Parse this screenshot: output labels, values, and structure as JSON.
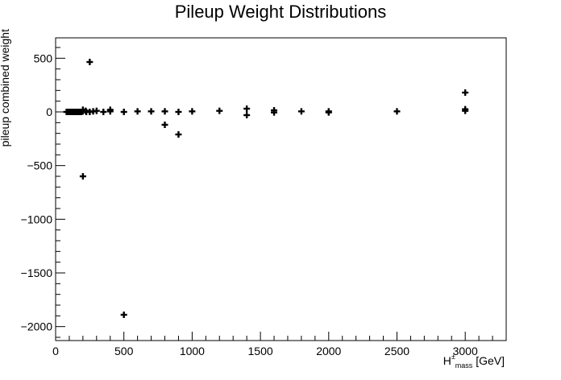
{
  "chart_data": {
    "type": "scatter",
    "title": "Pileup Weight Distributions",
    "ylabel": "pileup combined weight",
    "xlabel": {
      "main": "H",
      "sup": "±",
      "sub": "mass",
      "unit": "[GeV]"
    },
    "xlim": [
      0,
      3300
    ],
    "ylim": [
      -2130,
      690
    ],
    "xticks": [
      0,
      500,
      1000,
      1500,
      2000,
      2500,
      3000
    ],
    "yticks": [
      -2000,
      -1500,
      -1000,
      -500,
      0,
      500
    ],
    "tick_labels_x": [
      "0",
      "500",
      "1000",
      "1500",
      "2000",
      "2500",
      "3000"
    ],
    "tick_labels_y": [
      "−2000",
      "−1500",
      "−1000",
      "−500",
      "0",
      "500"
    ],
    "grid": false,
    "marker": "+",
    "points": [
      {
        "x": 80,
        "y": 0
      },
      {
        "x": 90,
        "y": 0
      },
      {
        "x": 100,
        "y": 0
      },
      {
        "x": 110,
        "y": 0
      },
      {
        "x": 120,
        "y": 0
      },
      {
        "x": 130,
        "y": 0
      },
      {
        "x": 140,
        "y": 0
      },
      {
        "x": 150,
        "y": 0
      },
      {
        "x": 160,
        "y": 0
      },
      {
        "x": 170,
        "y": 0
      },
      {
        "x": 180,
        "y": 0
      },
      {
        "x": 190,
        "y": 0
      },
      {
        "x": 200,
        "y": 20
      },
      {
        "x": 200,
        "y": 5
      },
      {
        "x": 200,
        "y": -600
      },
      {
        "x": 220,
        "y": 10
      },
      {
        "x": 225,
        "y": 0
      },
      {
        "x": 250,
        "y": 465
      },
      {
        "x": 250,
        "y": 0
      },
      {
        "x": 275,
        "y": 5
      },
      {
        "x": 300,
        "y": 10
      },
      {
        "x": 350,
        "y": 0
      },
      {
        "x": 400,
        "y": 20
      },
      {
        "x": 400,
        "y": 5
      },
      {
        "x": 500,
        "y": 0
      },
      {
        "x": 500,
        "y": -1890
      },
      {
        "x": 600,
        "y": 5
      },
      {
        "x": 700,
        "y": 5
      },
      {
        "x": 800,
        "y": 5
      },
      {
        "x": 800,
        "y": -120
      },
      {
        "x": 900,
        "y": 0
      },
      {
        "x": 900,
        "y": -210
      },
      {
        "x": 1000,
        "y": 5
      },
      {
        "x": 1200,
        "y": 10
      },
      {
        "x": 1400,
        "y": 30
      },
      {
        "x": 1400,
        "y": -30
      },
      {
        "x": 1600,
        "y": 15
      },
      {
        "x": 1600,
        "y": -5
      },
      {
        "x": 1800,
        "y": 5
      },
      {
        "x": 2000,
        "y": 5
      },
      {
        "x": 2000,
        "y": -5
      },
      {
        "x": 2500,
        "y": 5
      },
      {
        "x": 3000,
        "y": 180
      },
      {
        "x": 3000,
        "y": 25
      },
      {
        "x": 3000,
        "y": 10
      }
    ]
  }
}
